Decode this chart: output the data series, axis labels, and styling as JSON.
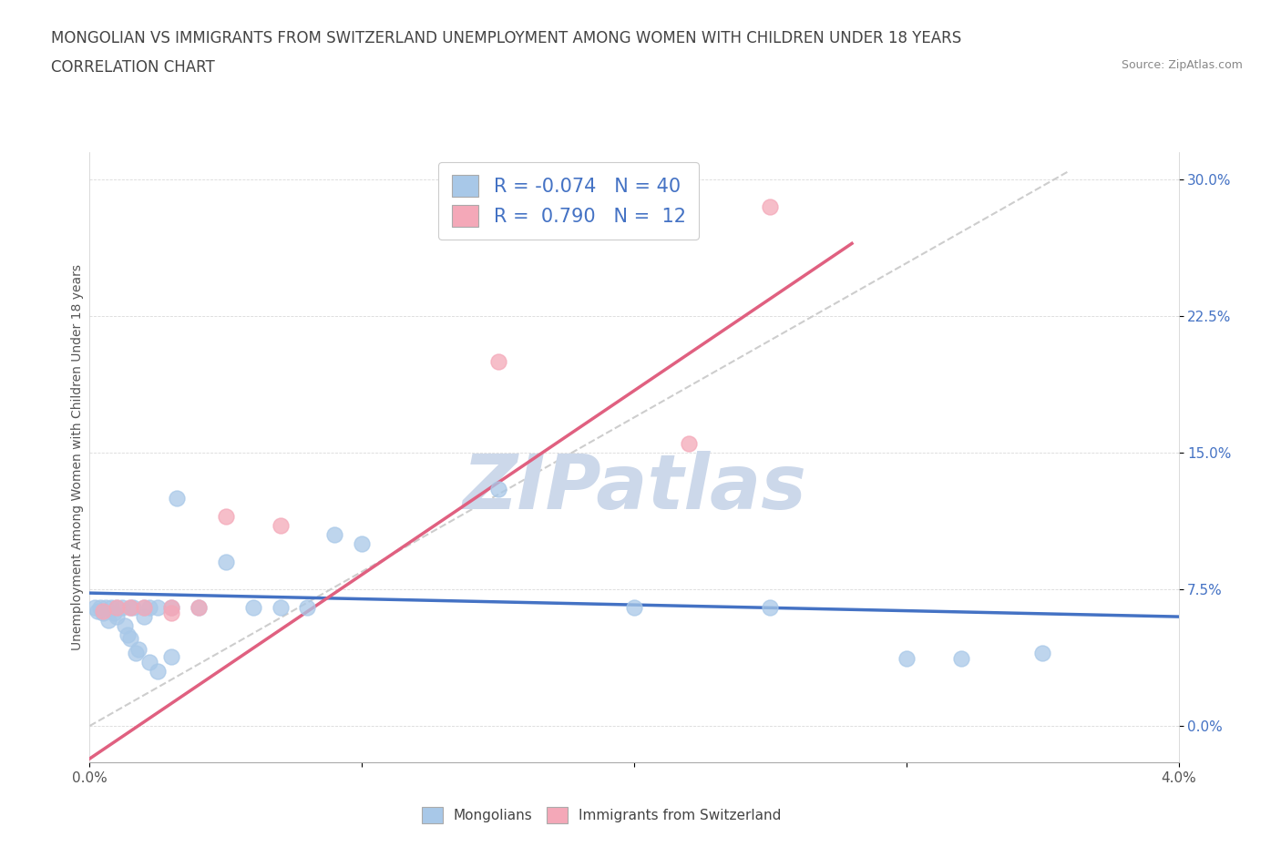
{
  "title_line1": "MONGOLIAN VS IMMIGRANTS FROM SWITZERLAND UNEMPLOYMENT AMONG WOMEN WITH CHILDREN UNDER 18 YEARS",
  "title_line2": "CORRELATION CHART",
  "source_text": "Source: ZipAtlas.com",
  "ylabel": "Unemployment Among Women with Children Under 18 years",
  "xlim": [
    0.0,
    0.04
  ],
  "ylim": [
    -0.02,
    0.315
  ],
  "xticks": [
    0.0,
    0.01,
    0.02,
    0.03,
    0.04
  ],
  "xtick_labels": [
    "0.0%",
    "",
    "",
    "",
    "4.0%"
  ],
  "yticks": [
    0.0,
    0.075,
    0.15,
    0.225,
    0.3
  ],
  "ytick_labels": [
    "0.0%",
    "7.5%",
    "15.0%",
    "22.5%",
    "30.0%"
  ],
  "mongolian_color": "#a8c8e8",
  "swiss_color": "#f4a8b8",
  "mongolian_line_color": "#4472c4",
  "swiss_line_color": "#e06080",
  "ref_line_color": "#c8c8c8",
  "watermark_color": "#ccd8ea",
  "legend_R_mongolian": "-0.074",
  "legend_N_mongolian": "40",
  "legend_R_swiss": "0.790",
  "legend_N_swiss": "12",
  "mongolian_scatter_x": [
    0.0002,
    0.0003,
    0.0004,
    0.0005,
    0.0006,
    0.0007,
    0.0008,
    0.0009,
    0.001,
    0.001,
    0.0012,
    0.0013,
    0.0014,
    0.0015,
    0.0015,
    0.0016,
    0.0017,
    0.0018,
    0.002,
    0.002,
    0.0022,
    0.0022,
    0.0025,
    0.0025,
    0.003,
    0.003,
    0.0032,
    0.004,
    0.005,
    0.006,
    0.007,
    0.008,
    0.009,
    0.01,
    0.015,
    0.02,
    0.025,
    0.03,
    0.032,
    0.035
  ],
  "mongolian_scatter_y": [
    0.065,
    0.063,
    0.065,
    0.062,
    0.065,
    0.058,
    0.065,
    0.062,
    0.065,
    0.06,
    0.065,
    0.055,
    0.05,
    0.065,
    0.048,
    0.065,
    0.04,
    0.042,
    0.065,
    0.06,
    0.065,
    0.035,
    0.065,
    0.03,
    0.065,
    0.038,
    0.125,
    0.065,
    0.09,
    0.065,
    0.065,
    0.065,
    0.105,
    0.1,
    0.13,
    0.065,
    0.065,
    0.037,
    0.037,
    0.04
  ],
  "swiss_scatter_x": [
    0.0005,
    0.001,
    0.0015,
    0.002,
    0.003,
    0.003,
    0.004,
    0.005,
    0.007,
    0.015,
    0.022,
    0.025
  ],
  "swiss_scatter_y": [
    0.063,
    0.065,
    0.065,
    0.065,
    0.065,
    0.062,
    0.065,
    0.115,
    0.11,
    0.2,
    0.155,
    0.285
  ],
  "mongolian_trend_x": [
    0.0,
    0.04
  ],
  "mongolian_trend_y": [
    0.073,
    0.06
  ],
  "swiss_trend_x": [
    0.0,
    0.028
  ],
  "swiss_trend_y": [
    -0.018,
    0.265
  ],
  "ref_line_x": [
    0.0,
    0.036
  ],
  "ref_line_y": [
    0.0,
    0.305
  ],
  "bg_color": "#ffffff",
  "title_fontsize": 12,
  "label_fontsize": 10
}
